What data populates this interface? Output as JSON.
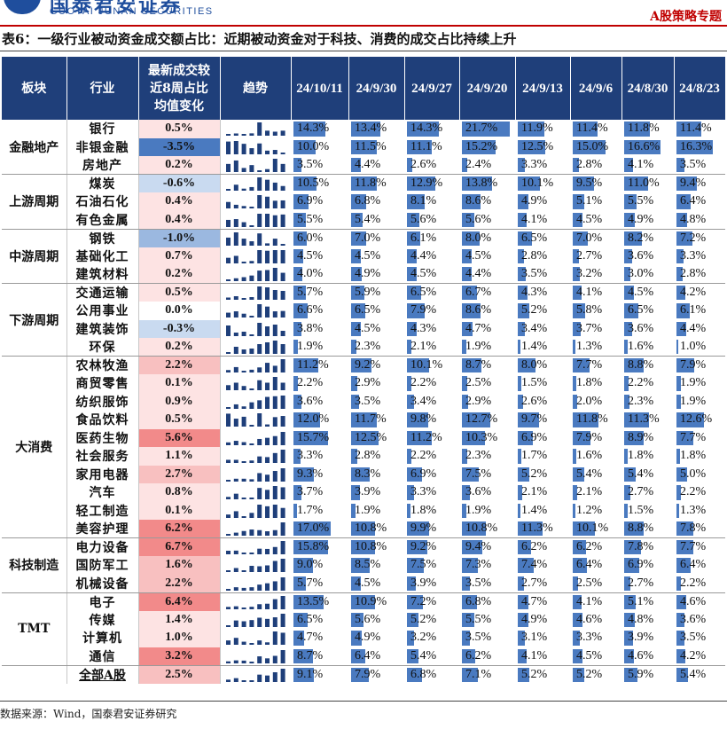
{
  "header": {
    "logo_cn": "国泰君安证券",
    "logo_en": "GUOTAI JUNAN SECURITIES",
    "right_label": "A股策略专题"
  },
  "caption": "表6：一级行业被动资金成交额占比：近期被动资金对于科技、消费的成交占比持续上升",
  "colors": {
    "header_bg": "#1f3f7a",
    "bar": "#4a7ac0",
    "pos_strong": "#f28a8a",
    "pos_mid": "#f8c0c0",
    "pos_light": "#fde3e3",
    "neg_strong": "#4a7ac0",
    "neg_mid": "#9bb8e0",
    "neg_light": "#c9daf0"
  },
  "table": {
    "headers": {
      "sector": "板块",
      "industry": "行业",
      "change": "最新成交较近8周占比均值变化",
      "trend": "趋势"
    },
    "dates": [
      "24/10/11",
      "24/9/30",
      "24/9/27",
      "24/9/20",
      "24/9/13",
      "24/9/6",
      "24/8/30",
      "24/8/23"
    ],
    "groups": [
      {
        "name": "金融地产",
        "rows": [
          {
            "industry": "银行",
            "change": "0.5%",
            "values": [
              "14.3%",
              "13.4%",
              "14.3%",
              "21.7%",
              "11.9%",
              "11.4%",
              "11.8%",
              "11.4%"
            ]
          },
          {
            "industry": "非银金融",
            "change": "-3.5%",
            "values": [
              "10.0%",
              "11.5%",
              "11.1%",
              "15.2%",
              "12.5%",
              "15.0%",
              "16.6%",
              "16.3%"
            ]
          },
          {
            "industry": "房地产",
            "change": "0.2%",
            "values": [
              "3.5%",
              "4.4%",
              "2.6%",
              "2.4%",
              "3.3%",
              "2.8%",
              "4.1%",
              "3.5%"
            ]
          }
        ]
      },
      {
        "name": "上游周期",
        "rows": [
          {
            "industry": "煤炭",
            "change": "-0.6%",
            "values": [
              "10.5%",
              "11.8%",
              "12.9%",
              "13.8%",
              "10.1%",
              "9.5%",
              "11.0%",
              "9.4%"
            ]
          },
          {
            "industry": "石油石化",
            "change": "0.4%",
            "values": [
              "6.9%",
              "6.8%",
              "8.1%",
              "8.6%",
              "4.9%",
              "5.1%",
              "5.5%",
              "6.4%"
            ]
          },
          {
            "industry": "有色金属",
            "change": "0.4%",
            "values": [
              "5.5%",
              "5.4%",
              "5.6%",
              "5.6%",
              "4.1%",
              "4.5%",
              "4.9%",
              "4.8%"
            ]
          }
        ]
      },
      {
        "name": "中游周期",
        "rows": [
          {
            "industry": "钢铁",
            "change": "-1.0%",
            "values": [
              "6.0%",
              "7.0%",
              "6.1%",
              "8.0%",
              "6.5%",
              "7.0%",
              "8.2%",
              "7.2%"
            ]
          },
          {
            "industry": "基础化工",
            "change": "0.7%",
            "values": [
              "4.5%",
              "4.5%",
              "4.4%",
              "4.5%",
              "2.8%",
              "2.7%",
              "3.6%",
              "3.3%"
            ]
          },
          {
            "industry": "建筑材料",
            "change": "0.2%",
            "values": [
              "4.0%",
              "4.9%",
              "4.5%",
              "4.4%",
              "3.5%",
              "3.2%",
              "3.0%",
              "2.8%"
            ]
          }
        ]
      },
      {
        "name": "下游周期",
        "rows": [
          {
            "industry": "交通运输",
            "change": "0.5%",
            "values": [
              "5.7%",
              "5.9%",
              "6.5%",
              "6.7%",
              "4.3%",
              "4.1%",
              "4.5%",
              "4.2%"
            ]
          },
          {
            "industry": "公用事业",
            "change": "0.0%",
            "values": [
              "6.6%",
              "6.5%",
              "7.9%",
              "8.6%",
              "5.2%",
              "5.8%",
              "6.5%",
              "6.1%"
            ]
          },
          {
            "industry": "建筑装饰",
            "change": "-0.3%",
            "values": [
              "3.8%",
              "4.5%",
              "4.3%",
              "4.7%",
              "3.4%",
              "3.7%",
              "3.6%",
              "4.4%"
            ]
          },
          {
            "industry": "环保",
            "change": "0.2%",
            "values": [
              "1.9%",
              "2.3%",
              "2.1%",
              "1.9%",
              "1.4%",
              "1.3%",
              "1.6%",
              "1.0%"
            ]
          }
        ]
      },
      {
        "name": "大消费",
        "rows": [
          {
            "industry": "农林牧渔",
            "change": "2.2%",
            "values": [
              "11.2%",
              "9.2%",
              "10.1%",
              "8.7%",
              "8.0%",
              "7.7%",
              "8.8%",
              "7.9%"
            ]
          },
          {
            "industry": "商贸零售",
            "change": "0.1%",
            "values": [
              "2.2%",
              "2.9%",
              "2.2%",
              "2.5%",
              "1.5%",
              "1.8%",
              "2.2%",
              "1.9%"
            ]
          },
          {
            "industry": "纺织服饰",
            "change": "0.9%",
            "values": [
              "3.6%",
              "3.5%",
              "3.4%",
              "2.9%",
              "2.6%",
              "2.0%",
              "2.3%",
              "1.9%"
            ]
          },
          {
            "industry": "食品饮料",
            "change": "0.5%",
            "values": [
              "12.0%",
              "11.7%",
              "9.8%",
              "12.7%",
              "9.7%",
              "11.8%",
              "11.3%",
              "12.6%"
            ]
          },
          {
            "industry": "医药生物",
            "change": "5.6%",
            "values": [
              "15.7%",
              "12.5%",
              "11.2%",
              "10.3%",
              "6.9%",
              "7.9%",
              "8.9%",
              "7.7%"
            ]
          },
          {
            "industry": "社会服务",
            "change": "1.1%",
            "values": [
              "3.3%",
              "2.8%",
              "2.2%",
              "2.3%",
              "1.7%",
              "1.6%",
              "1.8%",
              "1.8%"
            ]
          },
          {
            "industry": "家用电器",
            "change": "2.7%",
            "values": [
              "9.3%",
              "8.3%",
              "6.9%",
              "7.5%",
              "5.2%",
              "5.4%",
              "5.4%",
              "5.0%"
            ]
          },
          {
            "industry": "汽车",
            "change": "0.8%",
            "values": [
              "3.7%",
              "3.9%",
              "3.3%",
              "3.6%",
              "2.1%",
              "2.1%",
              "2.7%",
              "2.2%"
            ]
          },
          {
            "industry": "轻工制造",
            "change": "0.1%",
            "values": [
              "1.7%",
              "1.9%",
              "1.8%",
              "1.9%",
              "1.4%",
              "1.2%",
              "1.5%",
              "1.3%"
            ]
          },
          {
            "industry": "美容护理",
            "change": "6.2%",
            "values": [
              "17.0%",
              "10.8%",
              "9.9%",
              "10.8%",
              "11.3%",
              "10.1%",
              "8.8%",
              "7.8%"
            ]
          }
        ]
      },
      {
        "name": "科技制造",
        "rows": [
          {
            "industry": "电力设备",
            "change": "6.7%",
            "values": [
              "15.8%",
              "10.8%",
              "9.2%",
              "9.4%",
              "6.2%",
              "6.2%",
              "7.8%",
              "7.7%"
            ]
          },
          {
            "industry": "国防军工",
            "change": "1.6%",
            "values": [
              "9.0%",
              "8.5%",
              "7.5%",
              "7.3%",
              "7.4%",
              "6.4%",
              "6.9%",
              "6.4%"
            ]
          },
          {
            "industry": "机械设备",
            "change": "2.2%",
            "values": [
              "5.7%",
              "4.5%",
              "3.9%",
              "3.5%",
              "2.7%",
              "2.5%",
              "2.7%",
              "2.2%"
            ]
          }
        ]
      },
      {
        "name": "TMT",
        "rows": [
          {
            "industry": "电子",
            "change": "6.4%",
            "values": [
              "13.5%",
              "10.9%",
              "7.2%",
              "6.8%",
              "4.7%",
              "4.1%",
              "5.1%",
              "4.6%"
            ]
          },
          {
            "industry": "传媒",
            "change": "1.4%",
            "values": [
              "6.5%",
              "5.6%",
              "5.2%",
              "5.5%",
              "4.9%",
              "4.6%",
              "4.8%",
              "3.6%"
            ]
          },
          {
            "industry": "计算机",
            "change": "1.0%",
            "values": [
              "4.7%",
              "4.9%",
              "3.2%",
              "3.5%",
              "3.1%",
              "3.3%",
              "3.9%",
              "3.5%"
            ]
          },
          {
            "industry": "通信",
            "change": "3.2%",
            "values": [
              "8.7%",
              "6.4%",
              "5.4%",
              "6.2%",
              "4.1%",
              "4.5%",
              "4.6%",
              "4.2%"
            ]
          }
        ]
      }
    ],
    "total": {
      "industry": "全部A股",
      "change": "2.5%",
      "values": [
        "9.1%",
        "7.9%",
        "6.8%",
        "7.1%",
        "5.2%",
        "5.2%",
        "5.9%",
        "5.4%"
      ]
    }
  },
  "source": "数据来源：Wind，国泰君安证券研究"
}
